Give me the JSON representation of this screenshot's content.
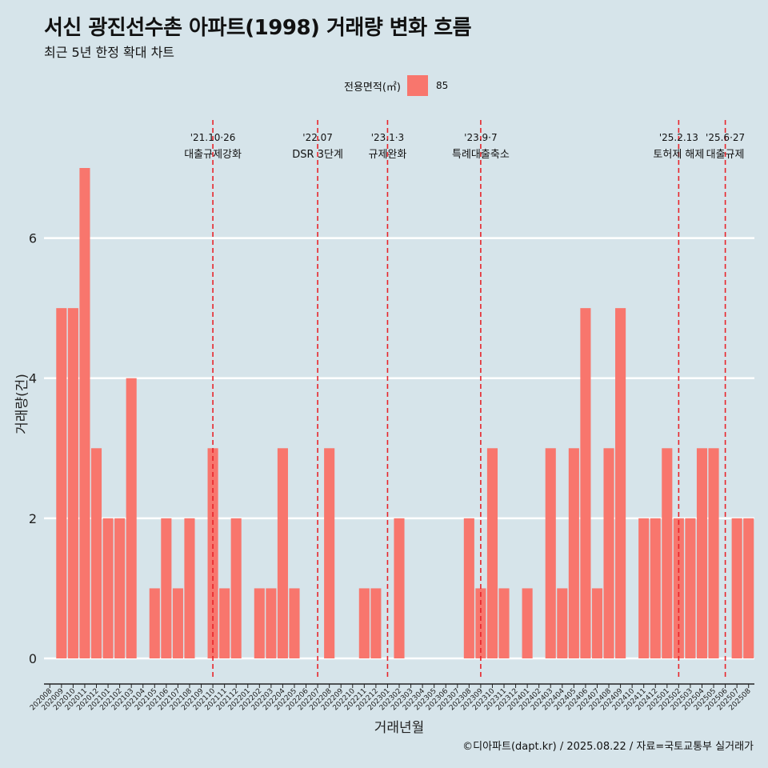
{
  "header": {
    "title": "서신 광진선수촌 아파트(1998) 거래량 변화 흐름",
    "subtitle": "최근 5년 한정 확대 차트"
  },
  "legend": {
    "title": "전용면적(㎡)",
    "item_label": "85",
    "item_color": "#f8766d"
  },
  "caption": "©디아파트(dapt.kr) / 2025.08.22 / 자료=국토교통부 실거래가",
  "chart_data": {
    "type": "bar",
    "xlabel": "거래년월",
    "ylabel": "거래량(건)",
    "ylim": [
      0,
      7
    ],
    "yticks": [
      0,
      2,
      4,
      6
    ],
    "grid": true,
    "legend_position": "top",
    "bar_color": "#f8766d",
    "categories": [
      "202008",
      "202009",
      "202010",
      "202011",
      "202012",
      "202101",
      "202102",
      "202103",
      "202104",
      "202105",
      "202106",
      "202107",
      "202108",
      "202109",
      "202110",
      "202111",
      "202112",
      "202201",
      "202202",
      "202203",
      "202204",
      "202205",
      "202206",
      "202207",
      "202208",
      "202209",
      "202210",
      "202211",
      "202212",
      "202301",
      "202302",
      "202303",
      "202304",
      "202305",
      "202306",
      "202307",
      "202308",
      "202309",
      "202310",
      "202311",
      "202312",
      "202401",
      "202402",
      "202403",
      "202404",
      "202405",
      "202406",
      "202407",
      "202408",
      "202409",
      "202410",
      "202411",
      "202412",
      "202501",
      "202502",
      "202503",
      "202504",
      "202505",
      "202506",
      "202507",
      "202508"
    ],
    "series": [
      {
        "values": [
          0,
          5,
          5,
          7,
          3,
          2,
          2,
          4,
          0,
          1,
          2,
          1,
          2,
          0,
          3,
          1,
          2,
          0,
          1,
          1,
          3,
          1,
          0,
          0,
          3,
          0,
          0,
          1,
          1,
          0,
          2,
          0,
          0,
          0,
          0,
          0,
          2,
          1,
          3,
          1,
          0,
          1,
          0,
          3,
          1,
          3,
          5,
          1,
          3,
          5,
          0,
          2,
          2,
          3,
          2,
          2,
          3,
          3,
          0,
          2,
          2
        ]
      }
    ],
    "annotations": [
      {
        "x": "202110",
        "date": "'21.10·26",
        "label": "대출규제강화",
        "color": "#e8242a"
      },
      {
        "x": "202207",
        "date": "'22.07",
        "label": "DSR 3단계",
        "color": "#e8242a"
      },
      {
        "x": "202301",
        "date": "'23.1·3",
        "label": "규제완화",
        "color": "#e8242a"
      },
      {
        "x": "202309",
        "date": "'23.9·7",
        "label": "특례대출축소",
        "color": "#e8242a"
      },
      {
        "x": "202502",
        "date": "'25.2.13",
        "label": "토허제 해제",
        "color": "#e8242a"
      },
      {
        "x": "202506",
        "date": "'25.6·27",
        "label": "대출규제",
        "color": "#e8242a"
      }
    ]
  }
}
